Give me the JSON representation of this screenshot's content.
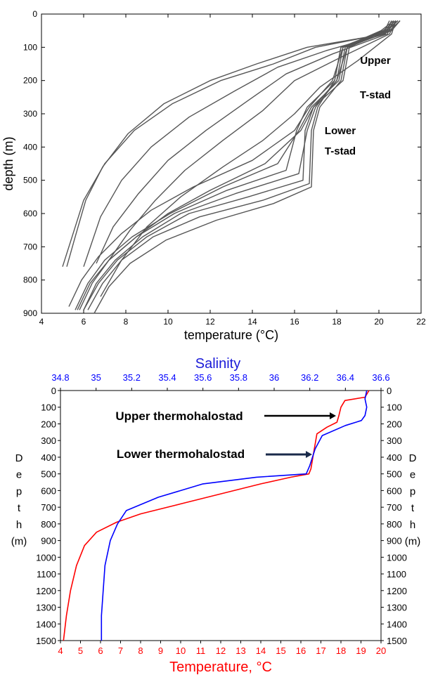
{
  "chart_data": [
    {
      "type": "line",
      "xlabel": "temperature (°C)",
      "ylabel": "depth (m)",
      "xlim": [
        4,
        22
      ],
      "ylim": [
        0,
        900
      ],
      "y_inverted": true,
      "grid": false,
      "x_ticks": [
        4,
        6,
        8,
        10,
        12,
        14,
        16,
        18,
        20,
        22
      ],
      "y_ticks": [
        0,
        100,
        200,
        300,
        400,
        500,
        600,
        700,
        800,
        900
      ],
      "line_color": "#555555",
      "annotations": [
        {
          "text": "Upper",
          "x": 21.2,
          "y": 115
        },
        {
          "text": "T-stad",
          "x": 21.2,
          "y": 165
        },
        {
          "text": "Lower",
          "x": 17.0,
          "y": 345
        },
        {
          "text": "T-stad",
          "x": 17.0,
          "y": 395
        }
      ],
      "series": [
        {
          "x": [
            20.5,
            20.2,
            17.0,
            15.0,
            12.5,
            10.2,
            8.4,
            7.0,
            6.0,
            5.4,
            5.0
          ],
          "y": [
            20,
            60,
            100,
            150,
            200,
            270,
            350,
            450,
            560,
            680,
            760
          ]
        },
        {
          "x": [
            20.6,
            20.3,
            16.6,
            14.2,
            12.0,
            9.8,
            8.1,
            6.9,
            6.1,
            5.6,
            5.2
          ],
          "y": [
            20,
            60,
            100,
            150,
            200,
            270,
            360,
            460,
            560,
            670,
            760
          ]
        },
        {
          "x": [
            20.6,
            20.3,
            17.5,
            15.2,
            13.2,
            11.0,
            9.2,
            7.8,
            6.8,
            6.0
          ],
          "y": [
            20,
            60,
            110,
            160,
            230,
            310,
            400,
            500,
            610,
            760
          ]
        },
        {
          "x": [
            20.7,
            20.4,
            17.8,
            15.6,
            13.8,
            11.8,
            10.0,
            8.6,
            7.4,
            6.6
          ],
          "y": [
            20,
            60,
            120,
            180,
            260,
            350,
            440,
            540,
            640,
            750
          ]
        },
        {
          "x": [
            20.8,
            20.5,
            18.2,
            16.0,
            14.5,
            12.6,
            10.8,
            9.4,
            8.2,
            7.2
          ],
          "y": [
            20,
            60,
            130,
            200,
            290,
            380,
            470,
            560,
            650,
            740
          ]
        },
        {
          "x": [
            20.8,
            20.6,
            19.0,
            17.2,
            16.0,
            14.5,
            12.6,
            10.6,
            9.0,
            7.8,
            6.8
          ],
          "y": [
            20,
            60,
            140,
            220,
            300,
            380,
            460,
            550,
            640,
            740,
            850
          ]
        },
        {
          "x": [
            20.9,
            20.3,
            18.5,
            18.0,
            16.9,
            16.3,
            14.6,
            12.0,
            10.0,
            8.5,
            7.2,
            6.4,
            5.8
          ],
          "y": [
            20,
            50,
            100,
            200,
            280,
            350,
            450,
            530,
            600,
            670,
            740,
            810,
            890
          ]
        },
        {
          "x": [
            20.9,
            20.4,
            18.3,
            18.0,
            17.0,
            16.6,
            16.2,
            13.2,
            10.6,
            8.8,
            7.5,
            6.6,
            6.0
          ],
          "y": [
            20,
            50,
            100,
            200,
            280,
            350,
            480,
            540,
            600,
            670,
            740,
            810,
            890
          ]
        },
        {
          "x": [
            21.0,
            20.5,
            18.2,
            17.9,
            17.1,
            16.8,
            16.7,
            14.5,
            11.5,
            9.3,
            7.8,
            6.9,
            6.2
          ],
          "y": [
            20,
            50,
            100,
            200,
            280,
            350,
            510,
            560,
            610,
            670,
            740,
            810,
            890
          ]
        },
        {
          "x": [
            20.8,
            20.2,
            18.4,
            18.1,
            16.8,
            16.2,
            15.2,
            12.6,
            10.1,
            8.3,
            7.0,
            6.2,
            5.6
          ],
          "y": [
            20,
            50,
            100,
            200,
            280,
            350,
            450,
            520,
            600,
            670,
            740,
            810,
            890
          ]
        },
        {
          "x": [
            21.0,
            20.6,
            18.5,
            18.2,
            17.2,
            16.9,
            16.8,
            15.0,
            12.3,
            9.9,
            8.2,
            7.2,
            6.5
          ],
          "y": [
            20,
            50,
            100,
            200,
            280,
            350,
            520,
            570,
            620,
            680,
            750,
            820,
            900
          ]
        },
        {
          "x": [
            20.7,
            20.1,
            18.3,
            17.8,
            16.7,
            16.0,
            14.0,
            11.2,
            9.2,
            7.8,
            6.7,
            5.9,
            5.3
          ],
          "y": [
            20,
            50,
            100,
            200,
            280,
            350,
            440,
            520,
            590,
            660,
            730,
            800,
            880
          ]
        },
        {
          "x": [
            20.9,
            20.3,
            18.6,
            18.3,
            16.9,
            16.5,
            16.4,
            13.8,
            11.0,
            9.0,
            7.6,
            6.7,
            6.0
          ],
          "y": [
            20,
            50,
            100,
            200,
            280,
            350,
            500,
            550,
            600,
            670,
            740,
            810,
            890
          ]
        },
        {
          "x": [
            20.8,
            20.2,
            18.2,
            17.9,
            16.6,
            16.1,
            15.6,
            12.8,
            10.3,
            8.5,
            7.2,
            6.3,
            5.7
          ],
          "y": [
            20,
            50,
            100,
            200,
            280,
            350,
            470,
            530,
            600,
            670,
            740,
            810,
            890
          ]
        }
      ]
    },
    {
      "type": "line",
      "title": "Salinity",
      "xlabel": "Temperature, °C",
      "ylabel": "Depth (m)",
      "xlim": [
        4,
        20
      ],
      "x2lim": [
        34.8,
        36.6
      ],
      "ylim": [
        0,
        1500
      ],
      "y_inverted": true,
      "grid": false,
      "x_ticks": [
        4,
        5,
        6,
        7,
        8,
        9,
        10,
        11,
        12,
        13,
        14,
        15,
        16,
        17,
        18,
        19,
        20
      ],
      "x2_ticks": [
        "34.8",
        "35",
        "35.2",
        "35.4",
        "35.6",
        "35.8",
        "36",
        "36.2",
        "36.4",
        "36.6"
      ],
      "y_ticks": [
        0,
        100,
        200,
        300,
        400,
        500,
        600,
        700,
        800,
        900,
        1000,
        1100,
        1200,
        1300,
        1400,
        1500
      ],
      "temperature_color": "#ff0000",
      "salinity_color": "#0000ff",
      "annotations": [
        {
          "text": "Upper thermohalostad",
          "arrow_to_depth": 200
        },
        {
          "text": "Lower thermohalostad",
          "arrow_to_depth": 400
        }
      ],
      "series": [
        {
          "axis": "temperature",
          "color": "#ff0000",
          "x": [
            19.4,
            19.2,
            18.2,
            18.0,
            17.9,
            17.8,
            17.3,
            16.8,
            16.6,
            16.5,
            16.4,
            15.5,
            14.0,
            12.0,
            10.0,
            8.0,
            6.8,
            5.8,
            5.2,
            4.8,
            4.5,
            4.3,
            4.2,
            4.15
          ],
          "y": [
            0,
            40,
            60,
            100,
            150,
            190,
            220,
            260,
            400,
            470,
            500,
            520,
            560,
            620,
            680,
            740,
            790,
            850,
            930,
            1050,
            1200,
            1350,
            1450,
            1500
          ]
        },
        {
          "axis": "salinity",
          "color": "#0000ff",
          "x": [
            36.52,
            36.51,
            36.52,
            36.51,
            36.49,
            36.4,
            36.27,
            36.23,
            36.2,
            36.18,
            35.9,
            35.6,
            35.35,
            35.17,
            35.12,
            35.08,
            35.05,
            35.04,
            35.03,
            35.03
          ],
          "y": [
            0,
            50,
            100,
            150,
            180,
            210,
            270,
            350,
            450,
            500,
            520,
            560,
            640,
            720,
            800,
            900,
            1050,
            1200,
            1350,
            1500
          ]
        }
      ]
    }
  ]
}
